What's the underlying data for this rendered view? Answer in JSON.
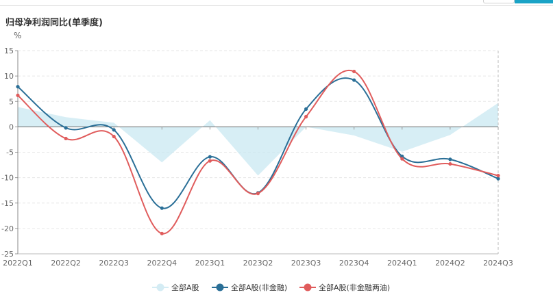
{
  "page": {
    "title": "归母净利润同比(单季度)",
    "unit": "%"
  },
  "chart_data": {
    "type": "line",
    "title": "归母净利润同比(单季度)",
    "ylabel": "%",
    "xlabel": "",
    "ylim": [
      -25,
      15
    ],
    "yticks": [
      15,
      10,
      5,
      0,
      -5,
      -10,
      -15,
      -20,
      -25
    ],
    "grid": true,
    "legend_position": "bottom-center",
    "categories": [
      "2022Q1",
      "2022Q2",
      "2022Q3",
      "2022Q4",
      "2023Q1",
      "2023Q2",
      "2023Q3",
      "2023Q4",
      "2024Q1",
      "2024Q2",
      "2024Q3"
    ],
    "series": [
      {
        "name": "全部A股",
        "style": "area",
        "color": "#c9e8f2",
        "values": [
          3.9,
          1.9,
          0.8,
          -7.0,
          1.3,
          -9.6,
          0.0,
          -1.7,
          -4.9,
          -1.6,
          4.7
        ]
      },
      {
        "name": "全部A股(非金融)",
        "style": "line",
        "color": "#2a6f97",
        "values": [
          7.9,
          -0.2,
          -0.6,
          -16.0,
          -5.9,
          -13.0,
          3.5,
          9.2,
          -5.8,
          -6.4,
          -10.2
        ]
      },
      {
        "name": "全部A股(非金融两油)",
        "style": "line",
        "color": "#e05c5c",
        "values": [
          6.2,
          -2.3,
          -1.9,
          -21.0,
          -6.7,
          -13.1,
          2.0,
          10.9,
          -6.3,
          -7.3,
          -9.6
        ]
      }
    ]
  }
}
